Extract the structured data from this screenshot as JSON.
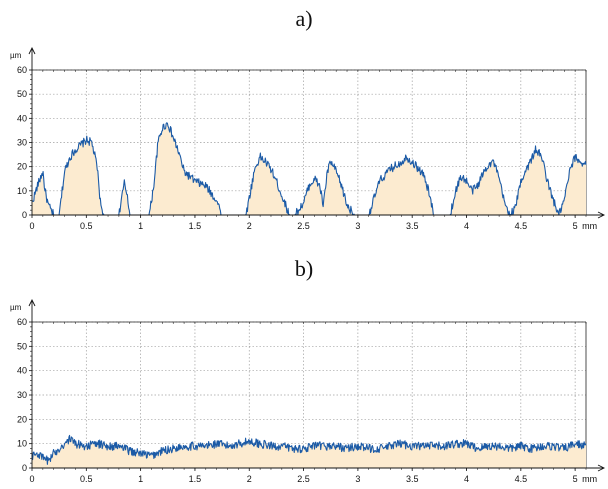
{
  "chart_data": [
    {
      "type": "area",
      "title": "a)",
      "xlabel": "mm",
      "ylabel": "µm",
      "xlim": [
        0,
        5.1
      ],
      "ylim": [
        0,
        60
      ],
      "x_ticks": [
        "0",
        "0.5",
        "1",
        "1.5",
        "2",
        "2.5",
        "3",
        "3.5",
        "4",
        "4.5",
        "5"
      ],
      "y_ticks": [
        "0",
        "10",
        "20",
        "30",
        "40",
        "50",
        "60"
      ],
      "grid": true,
      "colors": {
        "line": "#1b5aa6",
        "fill": "#fcebd0",
        "grid": "#a0a0a0"
      },
      "series": [
        {
          "x": [
            0,
            0.05,
            0.1,
            0.12,
            0.15,
            0.2,
            0.25,
            0.3,
            0.35,
            0.4,
            0.45,
            0.5,
            0.55,
            0.6,
            0.63,
            0.66,
            0.7,
            0.8,
            0.83,
            0.85,
            0.88,
            0.9,
            0.93,
            1.0,
            1.05,
            1.08,
            1.12,
            1.16,
            1.2,
            1.25,
            1.3,
            1.35,
            1.4,
            1.5,
            1.6,
            1.7,
            1.75,
            1.8,
            1.9,
            1.97,
            2.0,
            2.05,
            2.1,
            2.15,
            2.2,
            2.25,
            2.3,
            2.37,
            2.42,
            2.5,
            2.55,
            2.6,
            2.65,
            2.68,
            2.72,
            2.75,
            2.8,
            2.85,
            2.9,
            2.97,
            3.03,
            3.1,
            3.2,
            3.3,
            3.4,
            3.45,
            3.5,
            3.6,
            3.65,
            3.7,
            3.75,
            3.8,
            3.85,
            3.9,
            3.95,
            4.0,
            4.05,
            4.1,
            4.15,
            4.2,
            4.25,
            4.3,
            4.35,
            4.4,
            4.45,
            4.5,
            4.55,
            4.6,
            4.63,
            4.66,
            4.7,
            4.75,
            4.8,
            4.85,
            4.9,
            4.95,
            5.0,
            5.05,
            5.1
          ],
          "y": [
            5,
            12,
            18,
            10,
            4,
            0,
            0,
            18,
            24,
            27,
            29,
            31,
            30,
            20,
            5,
            0,
            0,
            0,
            8,
            13,
            8,
            0,
            0,
            0,
            0,
            0,
            12,
            30,
            36,
            38,
            32,
            26,
            18,
            14,
            12,
            6,
            0,
            0,
            0,
            0,
            7,
            19,
            24,
            22,
            19,
            14,
            8,
            0,
            0,
            5,
            12,
            15,
            12,
            4,
            18,
            22,
            18,
            12,
            4,
            0,
            0,
            0,
            14,
            19,
            22,
            24,
            22,
            17,
            10,
            0,
            0,
            0,
            0,
            10,
            16,
            14,
            10,
            12,
            17,
            21,
            22,
            15,
            5,
            0,
            3,
            14,
            19,
            23,
            27,
            26,
            23,
            13,
            6,
            0,
            6,
            18,
            24,
            22,
            21
          ]
        }
      ]
    },
    {
      "type": "area",
      "title": "b)",
      "xlabel": "mm",
      "ylabel": "µm",
      "xlim": [
        0,
        5.1
      ],
      "ylim": [
        0,
        60
      ],
      "x_ticks": [
        "0",
        "0.5",
        "1",
        "1.5",
        "2",
        "2.5",
        "3",
        "3.5",
        "4",
        "4.5",
        "5"
      ],
      "y_ticks": [
        "0",
        "10",
        "20",
        "30",
        "40",
        "50",
        "60"
      ],
      "grid": true,
      "colors": {
        "line": "#1b5aa6",
        "fill": "#fcebd0",
        "grid": "#a0a0a0"
      },
      "series": [
        {
          "x": [
            0,
            0.05,
            0.1,
            0.15,
            0.2,
            0.25,
            0.3,
            0.35,
            0.4,
            0.5,
            0.6,
            0.7,
            0.8,
            0.9,
            1.0,
            1.1,
            1.2,
            1.3,
            1.4,
            1.5,
            1.6,
            1.7,
            1.8,
            1.9,
            2.0,
            2.1,
            2.2,
            2.3,
            2.4,
            2.5,
            2.6,
            2.7,
            2.8,
            2.9,
            3.0,
            3.1,
            3.2,
            3.3,
            3.4,
            3.5,
            3.6,
            3.7,
            3.8,
            3.9,
            4.0,
            4.1,
            4.2,
            4.3,
            4.4,
            4.5,
            4.6,
            4.7,
            4.8,
            4.9,
            5.0,
            5.1
          ],
          "y": [
            5,
            6,
            4,
            3,
            6,
            8,
            10,
            12,
            10,
            9,
            10,
            9,
            9,
            7,
            6,
            5,
            7,
            8,
            9,
            9,
            9,
            10,
            9,
            10,
            11,
            10,
            9,
            9,
            8,
            8,
            9,
            9,
            9,
            8,
            9,
            8,
            8,
            9,
            10,
            9,
            9,
            9,
            9,
            10,
            10,
            8,
            9,
            9,
            8,
            9,
            8,
            9,
            9,
            8,
            10,
            9
          ]
        }
      ]
    }
  ]
}
